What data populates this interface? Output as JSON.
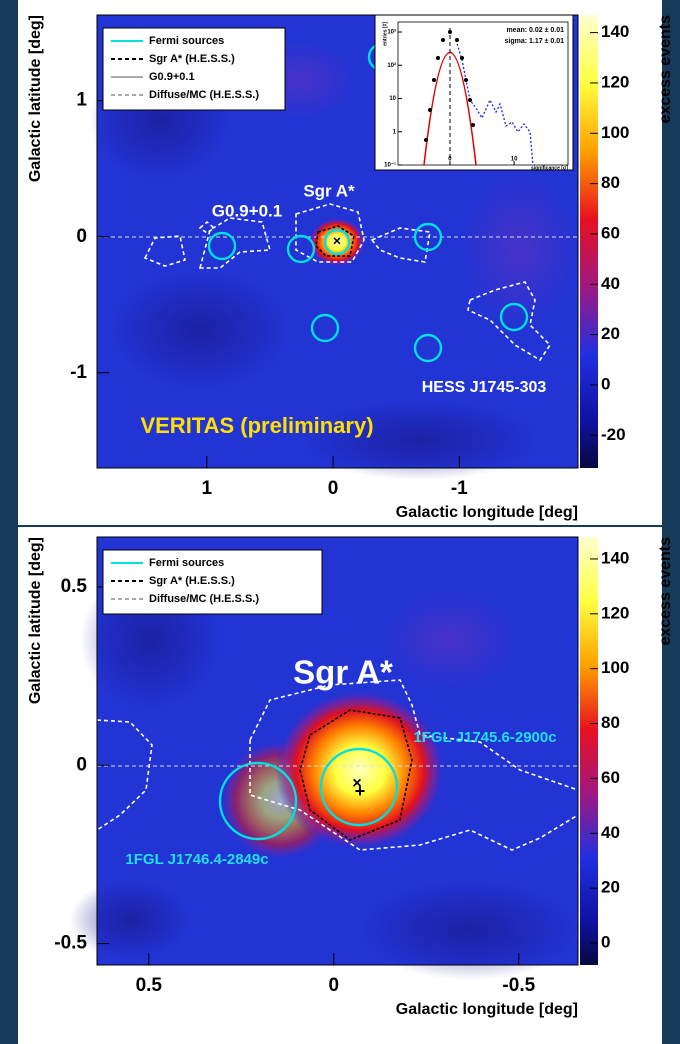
{
  "chart_data": [
    {
      "type": "heatmap",
      "xlabel": "Galactic longitude [deg]",
      "ylabel": "Galactic latitude [deg]",
      "xlim": [
        1.87,
        -1.94
      ],
      "xticks": [
        1,
        0,
        -1
      ],
      "ylim": [
        -1.7,
        1.63
      ],
      "yticks": [
        1,
        0,
        -1
      ],
      "colorbar": {
        "label": "excess events",
        "lim": [
          -33,
          147
        ],
        "ticks": [
          140,
          120,
          100,
          80,
          60,
          40,
          20,
          0,
          -20
        ]
      },
      "legend": [
        {
          "label": "Fermi sources",
          "color": "#00e0e0",
          "dash": "solid"
        },
        {
          "label": "Sgr A* (H.E.S.S.)",
          "color": "#000000",
          "dash": "dashed"
        },
        {
          "label": "G0.9+0.1",
          "color": "#aaaaaa",
          "dash": "solid"
        },
        {
          "label": "Diffuse/MC (H.E.S.S.)",
          "color": "#aaaaaa",
          "dash": "dashed"
        }
      ],
      "annotations": [
        "G0.9+0.1",
        "Sgr A*",
        "HESS J1745-303",
        "VERITAS (preliminary)"
      ],
      "inset": {
        "type": "histogram",
        "log_y": true,
        "xlabel": "significance [σ]",
        "ylabel": "entries [#]",
        "xlim": [
          -8.1,
          18.4
        ],
        "xticks": [
          0,
          10
        ],
        "ylim": [
          0.1,
          2000
        ],
        "yticks": [
          {
            "value": 1000,
            "label": "10³"
          },
          {
            "value": 100,
            "label": "10²"
          },
          10,
          1,
          {
            "value": 0.1,
            "label": "10⁻¹"
          }
        ],
        "texts": [
          "mean: 0.02 ± 0.01",
          "sigma: 1.17 ± 0.01"
        ]
      }
    },
    {
      "type": "heatmap",
      "xlabel": "Galactic longitude [deg]",
      "ylabel": "Galactic latitude [deg]",
      "xlim": [
        0.64,
        -0.66
      ],
      "xticks": [
        0.5,
        0,
        -0.5
      ],
      "ylim": [
        -0.56,
        0.64
      ],
      "yticks": [
        0.5,
        0,
        -0.5
      ],
      "colorbar": {
        "label": "excess events",
        "lim": [
          -8,
          148
        ],
        "ticks": [
          140,
          120,
          100,
          80,
          60,
          40,
          20,
          0
        ]
      },
      "legend": [
        {
          "label": "Fermi sources",
          "color": "#00e0e0",
          "dash": "solid"
        },
        {
          "label": "Sgr A* (H.E.S.S.)",
          "color": "#000000",
          "dash": "dashed"
        },
        {
          "label": "Diffuse/MC (H.E.S.S.)",
          "color": "#aaaaaa",
          "dash": "dashed"
        }
      ],
      "annotations": [
        "Sgr A*",
        "1FGL J1745.6-2900c",
        "1FGL J1746.4-2849c"
      ]
    }
  ]
}
